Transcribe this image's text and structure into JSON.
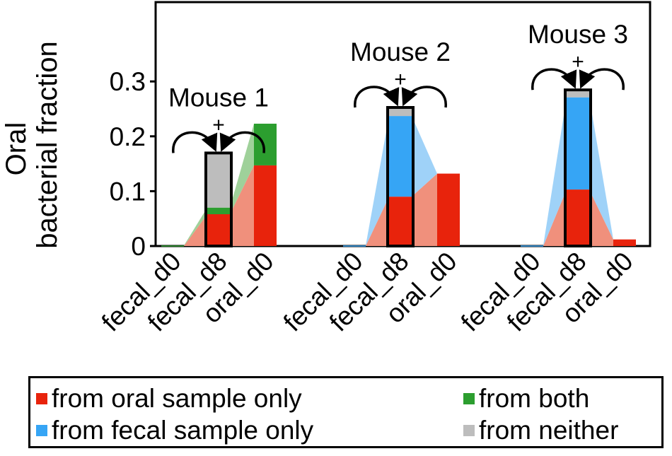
{
  "chart_data": {
    "type": "bar",
    "ylabel": "Oral bacterial fraction",
    "ylim": [
      0,
      0.35
    ],
    "yticks": [
      {
        "value": 0,
        "label": "0"
      },
      {
        "value": 0.1,
        "label": "0.1"
      },
      {
        "value": 0.2,
        "label": "0.2"
      },
      {
        "value": 0.3,
        "label": "0.3"
      }
    ],
    "categories": [
      "fecal_d0",
      "fecal_d8",
      "oral_d0"
    ],
    "highlighted_category": "fecal_d8",
    "highlight_symbol": "+",
    "colors": {
      "oral_only": "#e8230c",
      "fecal_only": "#36a5f5",
      "both": "#2c9e2f",
      "neither": "#bdbdbd",
      "flow_oral": "#f0907c",
      "flow_fecal": "#9fd2f8",
      "flow_both": "#9fd19a"
    },
    "groups": [
      {
        "title": "Mouse 1",
        "bars": [
          {
            "category": "fecal_d0",
            "oral_only": 0,
            "fecal_only": 0,
            "both": 0.001,
            "neither": 0
          },
          {
            "category": "fecal_d8",
            "oral_only": 0.058,
            "fecal_only": 0,
            "both": 0.012,
            "neither": 0.097
          },
          {
            "category": "oral_d0",
            "oral_only": 0.147,
            "fecal_only": 0,
            "both": 0.076,
            "neither": 0
          }
        ]
      },
      {
        "title": "Mouse 2",
        "bars": [
          {
            "category": "fecal_d0",
            "oral_only": 0,
            "fecal_only": 0.001,
            "both": 0,
            "neither": 0
          },
          {
            "category": "fecal_d8",
            "oral_only": 0.09,
            "fecal_only": 0.147,
            "both": 0,
            "neither": 0.013
          },
          {
            "category": "oral_d0",
            "oral_only": 0.132,
            "fecal_only": 0,
            "both": 0,
            "neither": 0
          }
        ]
      },
      {
        "title": "Mouse 3",
        "bars": [
          {
            "category": "fecal_d0",
            "oral_only": 0,
            "fecal_only": 0.001,
            "both": 0,
            "neither": 0
          },
          {
            "category": "fecal_d8",
            "oral_only": 0.103,
            "fecal_only": 0.168,
            "both": 0,
            "neither": 0.011
          },
          {
            "category": "oral_d0",
            "oral_only": 0.012,
            "fecal_only": 0,
            "both": 0,
            "neither": 0
          }
        ]
      }
    ],
    "legend": {
      "placement": "bottom",
      "items": [
        {
          "key": "oral_only",
          "label": "from oral sample only"
        },
        {
          "key": "both",
          "label": "from both"
        },
        {
          "key": "fecal_only",
          "label": "from fecal sample only"
        },
        {
          "key": "neither",
          "label": "from neither"
        }
      ]
    }
  }
}
